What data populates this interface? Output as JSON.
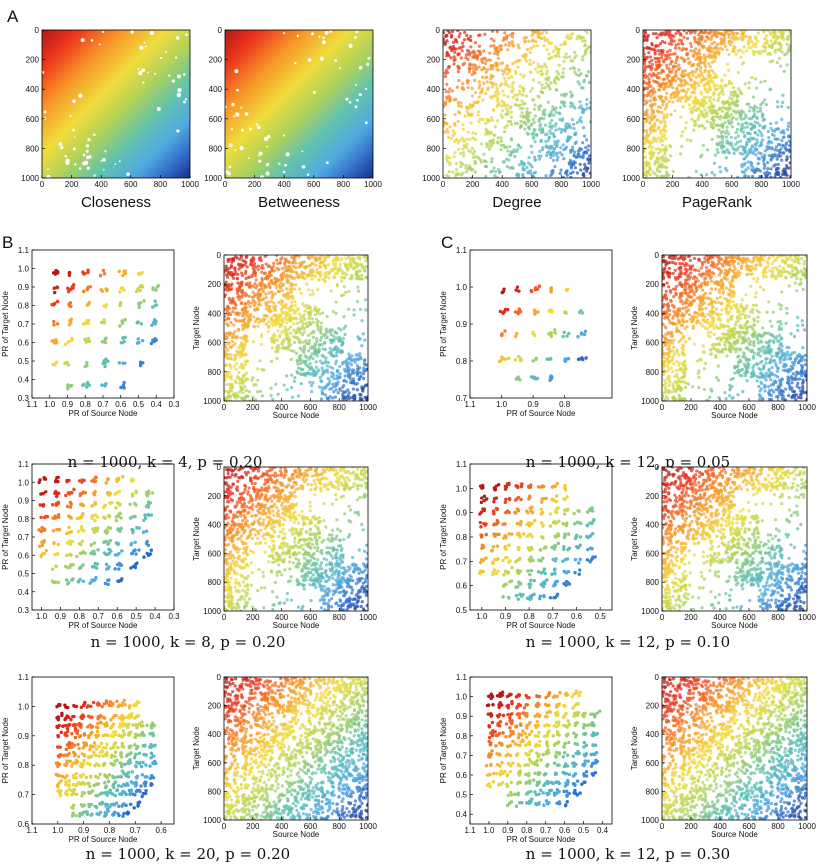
{
  "chart_data": {
    "panel_labels": [
      "A",
      "B",
      "C"
    ],
    "matrix_ticks": [
      "0",
      "200",
      "400",
      "600",
      "800",
      "1000"
    ],
    "top_row": [
      {
        "id": "closeness",
        "type": "heatmap",
        "xlabel": "Closeness",
        "pattern": "smooth"
      },
      {
        "id": "betweeness",
        "type": "heatmap",
        "xlabel": "Betweeness",
        "pattern": "smooth"
      },
      {
        "id": "degree",
        "type": "heatmap",
        "xlabel": "Degree",
        "pattern": "degree"
      },
      {
        "id": "pagerank",
        "type": "heatmap",
        "xlabel": "PageRank",
        "pattern": "blocks"
      }
    ],
    "rows": [
      {
        "id": "b1",
        "caption": "n = 1000, k = 4, p = 0.20",
        "scatter": {
          "type": "scatter",
          "xlabel": "PR of Source Node",
          "ylabel": "PR of Target Node",
          "x_ticks": [
            "1.1",
            "1.0",
            "0.9",
            "0.8",
            "0.7",
            "0.6",
            "0.5",
            "0.4",
            "0.3"
          ],
          "y_ticks": [
            "0.3",
            "0.4",
            "0.5",
            "0.6",
            "0.7",
            "0.8",
            "0.9",
            "1.0",
            "1.1"
          ],
          "xlim": [
            1.1,
            0.3
          ],
          "ylim": [
            0.3,
            1.1
          ],
          "grid_x": [
            0.98,
            0.9,
            0.8,
            0.7,
            0.6,
            0.5,
            0.42
          ],
          "grid_y": [
            0.36,
            0.48,
            0.6,
            0.7,
            0.8,
            0.88,
            0.97
          ]
        },
        "matrix": {
          "xlabel": "Source Node",
          "ylabel": "Target Node",
          "blocks": 6
        }
      },
      {
        "id": "c1",
        "caption": "n = 1000, k = 12, p = 0.05",
        "scatter": {
          "type": "scatter",
          "xlabel": "PR of Source Node",
          "ylabel": "PR of Target Node",
          "x_ticks": [
            "1.1",
            "1.0",
            "0.9",
            "0.8"
          ],
          "y_ticks": [
            "0.7",
            "0.8",
            "0.9",
            "1.0",
            "1.1"
          ],
          "xlim": [
            1.1,
            0.65
          ],
          "ylim": [
            0.7,
            1.1
          ],
          "grid_x": [
            1.0,
            0.95,
            0.9,
            0.85,
            0.8,
            0.75
          ],
          "grid_y": [
            0.75,
            0.8,
            0.87,
            0.93,
            0.99
          ]
        },
        "matrix": {
          "xlabel": "Source Node",
          "ylabel": "Target Node",
          "blocks": 6
        }
      },
      {
        "id": "b2",
        "caption": "n = 1000, k = 8, p = 0.20",
        "scatter": {
          "type": "scatter",
          "xlabel": "PR of Source Node",
          "ylabel": "PR of Target Node",
          "x_ticks": [
            "1.0",
            "0.9",
            "0.8",
            "0.7",
            "0.6",
            "0.5",
            "0.4",
            "0.3"
          ],
          "y_ticks": [
            "0.3",
            "0.4",
            "0.5",
            "0.6",
            "0.7",
            "0.8",
            "0.9",
            "1.0",
            "1.1"
          ],
          "xlim": [
            1.05,
            0.3
          ],
          "ylim": [
            0.3,
            1.1
          ],
          "grid_x": [
            1.0,
            0.93,
            0.86,
            0.8,
            0.73,
            0.66,
            0.6,
            0.52,
            0.45
          ],
          "grid_y": [
            0.45,
            0.53,
            0.6,
            0.66,
            0.73,
            0.8,
            0.87,
            0.93,
            1.0
          ]
        },
        "matrix": {
          "xlabel": "Source Node",
          "ylabel": "Target Node",
          "blocks": 6
        }
      },
      {
        "id": "c2",
        "caption": "n = 1000, k = 12, p = 0.10",
        "scatter": {
          "type": "scatter",
          "xlabel": "PR of Source Node",
          "ylabel": "PR of Target Node",
          "x_ticks": [
            "1.0",
            "0.9",
            "0.8",
            "0.7",
            "0.6",
            "0.5"
          ],
          "y_ticks": [
            "0.5",
            "0.6",
            "0.7",
            "0.8",
            "0.9",
            "1.0",
            "1.1"
          ],
          "xlim": [
            1.05,
            0.45
          ],
          "ylim": [
            0.5,
            1.1
          ],
          "grid_x": [
            1.0,
            0.95,
            0.9,
            0.85,
            0.8,
            0.75,
            0.7,
            0.65,
            0.6,
            0.55
          ],
          "grid_y": [
            0.55,
            0.6,
            0.65,
            0.7,
            0.75,
            0.8,
            0.85,
            0.9,
            0.95,
            1.0
          ]
        },
        "matrix": {
          "xlabel": "Source Node",
          "ylabel": "Target Node",
          "blocks": 6
        }
      },
      {
        "id": "b3",
        "caption": "n = 1000, k = 20, p = 0.20",
        "scatter": {
          "type": "scatter",
          "xlabel": "PR of Source Node",
          "ylabel": "PR of Target Node",
          "x_ticks": [
            "1.1",
            "1.0",
            "0.9",
            "0.8",
            "0.7",
            "0.6"
          ],
          "y_ticks": [
            "0.6",
            "0.7",
            "0.8",
            "0.9",
            "1.0",
            "1.1"
          ],
          "xlim": [
            1.1,
            0.55
          ],
          "ylim": [
            0.6,
            1.1
          ],
          "grid_x": [
            1.0,
            0.97,
            0.94,
            0.91,
            0.88,
            0.85,
            0.82,
            0.79,
            0.76,
            0.73,
            0.7,
            0.67,
            0.64
          ],
          "grid_y": [
            0.63,
            0.66,
            0.7,
            0.73,
            0.76,
            0.8,
            0.83,
            0.86,
            0.9,
            0.93,
            0.96,
            1.0
          ]
        },
        "matrix": {
          "xlabel": "Source Node",
          "ylabel": "Target Node",
          "blocks": 6
        }
      },
      {
        "id": "c3",
        "caption": "n = 1000, k = 12, p = 0.30",
        "scatter": {
          "type": "scatter",
          "xlabel": "PR of Source Node",
          "ylabel": "PR of Target Node",
          "x_ticks": [
            "1.1",
            "1.0",
            "0.9",
            "0.8",
            "0.7",
            "0.6",
            "0.5",
            "0.4"
          ],
          "y_ticks": [
            "0.4",
            "0.5",
            "0.6",
            "0.7",
            "0.8",
            "0.9",
            "1.0",
            "1.1"
          ],
          "xlim": [
            1.1,
            0.35
          ],
          "ylim": [
            0.35,
            1.1
          ],
          "grid_x": [
            1.0,
            0.95,
            0.9,
            0.85,
            0.8,
            0.75,
            0.7,
            0.65,
            0.6,
            0.55,
            0.5,
            0.45
          ],
          "grid_y": [
            0.45,
            0.5,
            0.55,
            0.6,
            0.65,
            0.7,
            0.75,
            0.8,
            0.85,
            0.9,
            0.95,
            1.0
          ]
        },
        "matrix": {
          "xlabel": "Source Node",
          "ylabel": "Target Node",
          "blocks": 6
        }
      }
    ]
  }
}
